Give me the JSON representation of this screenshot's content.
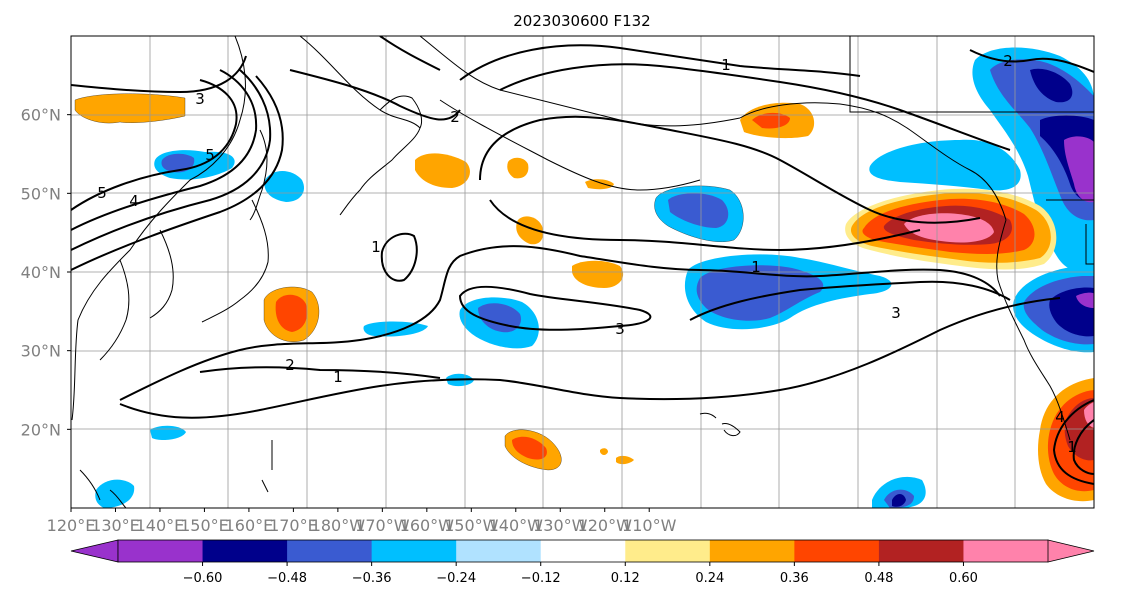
{
  "title": "2023030600 F132",
  "map": {
    "projection": "PlateCarree",
    "lon_range": [
      120,
      -110
    ],
    "lat_range": [
      10,
      70
    ],
    "gridlines": true,
    "lon_ticks": [
      "120°E",
      "130°E",
      "140°E",
      "150°E",
      "160°E",
      "170°E",
      "180°W",
      "170°W",
      "160°W",
      "150°W",
      "140°W",
      "130°W",
      "120°W",
      "110°W"
    ],
    "lat_ticks": [
      "20°N",
      "30°N",
      "40°N",
      "50°N",
      "60°N"
    ]
  },
  "colorbar": {
    "orientation": "horizontal",
    "extend": "both",
    "colors": [
      "#9932CC",
      "#00008B",
      "#3A5BD1",
      "#00BFFF",
      "#B0E2FF",
      "#FFFFFF",
      "#FFEC8B",
      "#FFA500",
      "#FF4500",
      "#B22222",
      "#FF82AB"
    ],
    "tick_labels": [
      "−0.60",
      "−0.48",
      "−0.36",
      "−0.24",
      "−0.12",
      "0.12",
      "0.24",
      "0.36",
      "0.48",
      "0.60"
    ]
  },
  "contour_labels": [
    "5",
    "4",
    "3",
    "2",
    "1",
    "1",
    "1",
    "2",
    "1",
    "3",
    "3",
    "4",
    "1",
    "2",
    "5"
  ],
  "colors": {
    "contour_line": "#000000",
    "coastline": "#000000",
    "grid": "#999999"
  }
}
